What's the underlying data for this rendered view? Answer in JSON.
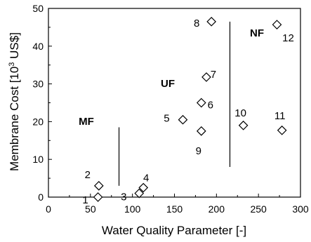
{
  "chart_data": {
    "type": "scatter",
    "xlabel": "Water Quality Parameter [-]",
    "ylabel_main": "Membrane Cost [10",
    "ylabel_sup": "3",
    "ylabel_end": " US$]",
    "xlim": [
      0,
      300
    ],
    "ylim": [
      0,
      50
    ],
    "x_ticks": [
      "0",
      "50",
      "100",
      "150",
      "200",
      "250",
      "300"
    ],
    "y_ticks": [
      "0",
      "10",
      "20",
      "30",
      "40",
      "50"
    ],
    "grid": false,
    "marker": "diamond-open",
    "points": [
      {
        "label": "1",
        "x": 59,
        "y": 0
      },
      {
        "label": "2",
        "x": 60,
        "y": 3
      },
      {
        "label": "3",
        "x": 108,
        "y": 1
      },
      {
        "label": "4",
        "x": 113,
        "y": 2.5
      },
      {
        "label": "5",
        "x": 160,
        "y": 20.5
      },
      {
        "label": "6",
        "x": 182,
        "y": 25
      },
      {
        "label": "7",
        "x": 188,
        "y": 31.8
      },
      {
        "label": "8",
        "x": 194,
        "y": 46.5
      },
      {
        "label": "9",
        "x": 182,
        "y": 17.5
      },
      {
        "label": "10",
        "x": 232,
        "y": 19
      },
      {
        "label": "11",
        "x": 278,
        "y": 17.7
      },
      {
        "label": "12",
        "x": 272,
        "y": 45.7
      }
    ],
    "region_labels": [
      "MF",
      "UF",
      "NF"
    ],
    "dividers": [
      {
        "x": 84,
        "y_from": 3,
        "y_to": 18.5
      },
      {
        "x": 216,
        "y_from": 8,
        "y_to": 46.5
      }
    ]
  }
}
